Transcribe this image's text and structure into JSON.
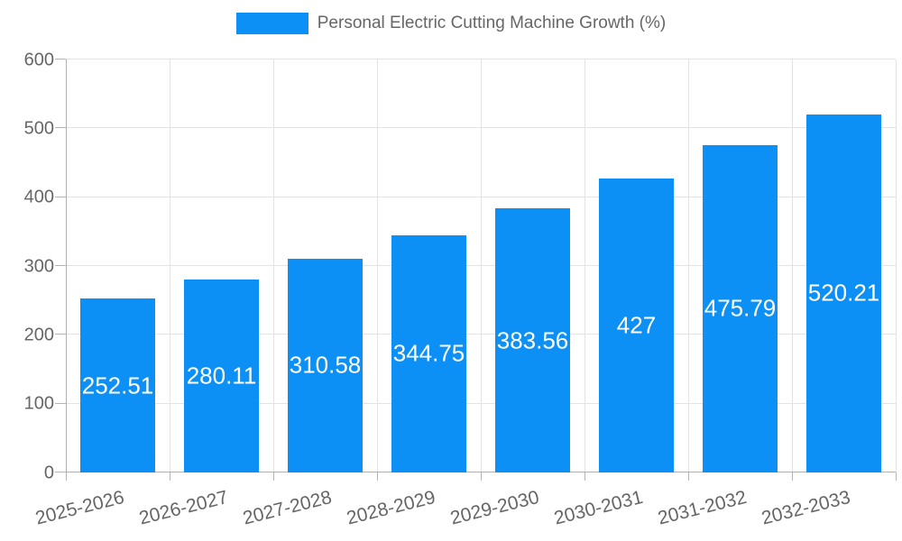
{
  "chart_data": {
    "type": "bar",
    "title": "Personal Electric Cutting Machine Growth (%)",
    "categories": [
      "2025-2026",
      "2026-2027",
      "2027-2028",
      "2028-2029",
      "2029-2030",
      "2030-2031",
      "2031-2032",
      "2032-2033"
    ],
    "values": [
      252.51,
      280.11,
      310.58,
      344.75,
      383.56,
      427,
      475.79,
      520.21
    ],
    "value_labels": [
      "252.51",
      "280.11",
      "310.58",
      "344.75",
      "383.56",
      "427",
      "475.79",
      "520.21"
    ],
    "xlabel": "",
    "ylabel": "",
    "ylim": [
      0,
      600
    ],
    "yticks": [
      0,
      100,
      200,
      300,
      400,
      500,
      600
    ],
    "grid": true,
    "legend_position": "top-center",
    "x_label_rotation_deg": -14,
    "value_label_position": "inside-center"
  },
  "colors": {
    "bar": "#0d90f5",
    "value_label": "#ffffff",
    "axis_text": "#666666",
    "title_text": "#666666",
    "grid": "#e3e3e3",
    "axis_line": "#b0b0b0"
  },
  "legend": {
    "label": "Personal Electric Cutting Machine Growth (%)"
  }
}
